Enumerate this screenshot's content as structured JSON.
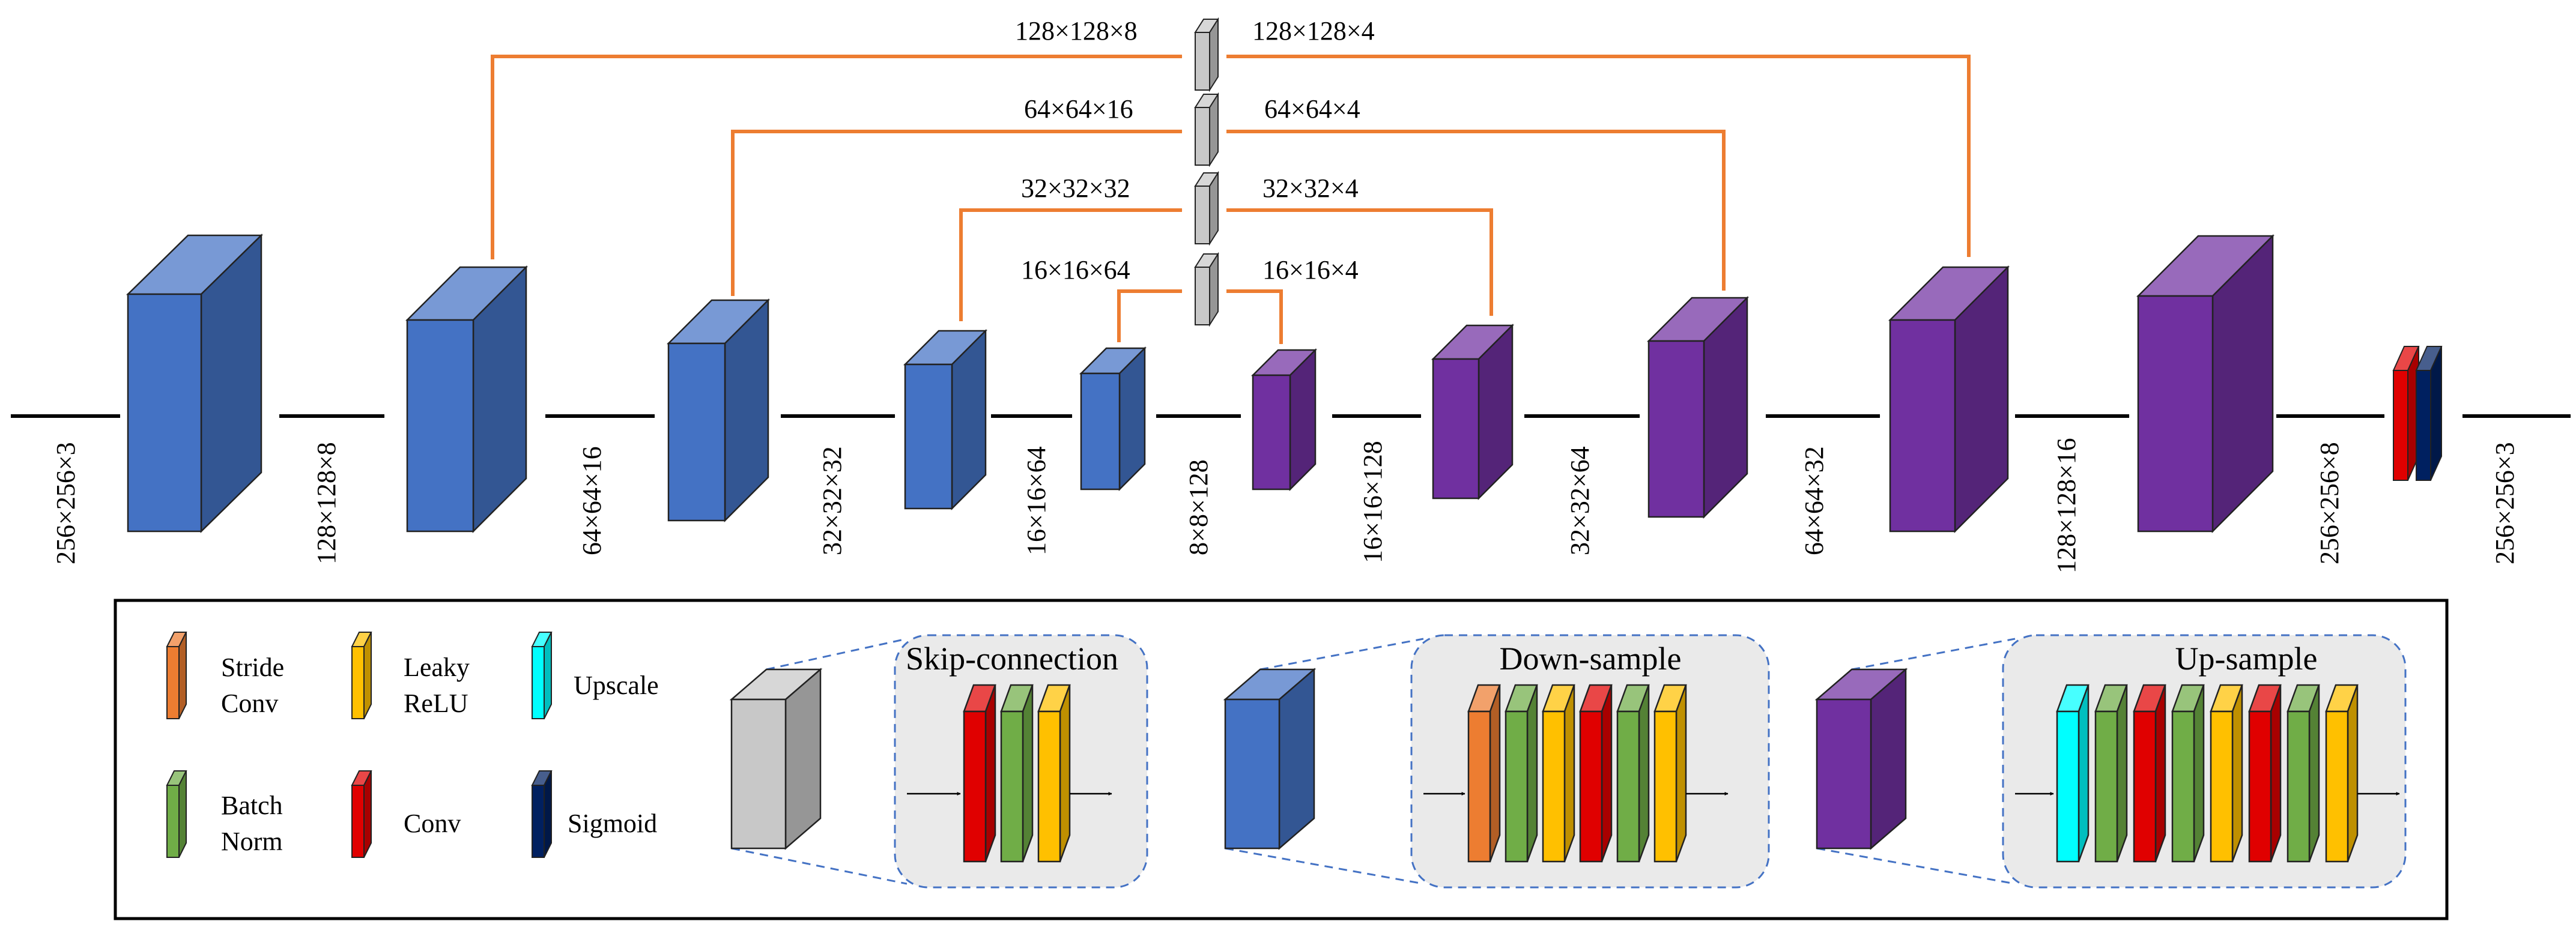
{
  "colors": {
    "encoder": "#4472C4",
    "decoder": "#7030A0",
    "skip_block": "#C8C8C8",
    "skip_arrow": "#ED7D31",
    "stride_conv": "#ED7D31",
    "leaky_relu": "#FFC000",
    "upscale": "#00FFFF",
    "batch_norm": "#70AD47",
    "conv": "#E00000",
    "sigmoid": "#002060"
  },
  "main_flow": {
    "input_label": "256×256×3",
    "encoder_labels": [
      "128×128×8",
      "64×64×16",
      "32×32×32",
      "16×16×64",
      "8×8×128"
    ],
    "decoder_labels": [
      "16×16×128",
      "32×32×64",
      "64×64×32",
      "128×128×16",
      "256×256×8"
    ],
    "output_label": "256×256×3"
  },
  "skip_connections": [
    {
      "in_label": "128×128×8",
      "out_label": "128×128×4"
    },
    {
      "in_label": "64×64×16",
      "out_label": "64×64×4"
    },
    {
      "in_label": "32×32×32",
      "out_label": "32×32×4"
    },
    {
      "in_label": "16×16×64",
      "out_label": "16×16×4"
    }
  ],
  "legend": {
    "items": [
      {
        "key": "stride_conv",
        "lines": [
          "Stride",
          "Conv"
        ]
      },
      {
        "key": "leaky_relu",
        "lines": [
          "Leaky",
          "ReLU"
        ]
      },
      {
        "key": "upscale",
        "lines": [
          "Upscale"
        ]
      },
      {
        "key": "batch_norm",
        "lines": [
          "Batch",
          "Norm"
        ]
      },
      {
        "key": "conv",
        "lines": [
          "Conv"
        ]
      },
      {
        "key": "sigmoid",
        "lines": [
          "Sigmoid"
        ]
      }
    ],
    "modules": [
      {
        "title": "Skip-connection",
        "layers": [
          "conv",
          "batch_norm",
          "leaky_relu"
        ]
      },
      {
        "title": "Down-sample",
        "layers": [
          "stride_conv",
          "batch_norm",
          "leaky_relu",
          "conv",
          "batch_norm",
          "leaky_relu"
        ]
      },
      {
        "title": "Up-sample",
        "layers": [
          "upscale",
          "batch_norm",
          "conv",
          "batch_norm",
          "leaky_relu",
          "conv",
          "batch_norm",
          "leaky_relu"
        ]
      }
    ]
  }
}
